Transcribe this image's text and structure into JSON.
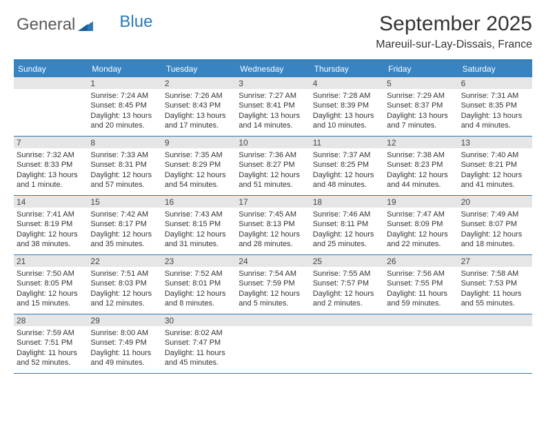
{
  "brand": {
    "part1": "General",
    "part2": "Blue"
  },
  "title": "September 2025",
  "location": "Mareuil-sur-Lay-Dissais, France",
  "colors": {
    "header_bg": "#3983c1",
    "border": "#2a79b8",
    "daynum_bg": "#e6e6e6"
  },
  "day_headers": [
    "Sunday",
    "Monday",
    "Tuesday",
    "Wednesday",
    "Thursday",
    "Friday",
    "Saturday"
  ],
  "weeks": [
    [
      {
        "blank": true
      },
      {
        "n": "1",
        "sunrise": "Sunrise: 7:24 AM",
        "sunset": "Sunset: 8:45 PM",
        "d1": "Daylight: 13 hours",
        "d2": "and 20 minutes."
      },
      {
        "n": "2",
        "sunrise": "Sunrise: 7:26 AM",
        "sunset": "Sunset: 8:43 PM",
        "d1": "Daylight: 13 hours",
        "d2": "and 17 minutes."
      },
      {
        "n": "3",
        "sunrise": "Sunrise: 7:27 AM",
        "sunset": "Sunset: 8:41 PM",
        "d1": "Daylight: 13 hours",
        "d2": "and 14 minutes."
      },
      {
        "n": "4",
        "sunrise": "Sunrise: 7:28 AM",
        "sunset": "Sunset: 8:39 PM",
        "d1": "Daylight: 13 hours",
        "d2": "and 10 minutes."
      },
      {
        "n": "5",
        "sunrise": "Sunrise: 7:29 AM",
        "sunset": "Sunset: 8:37 PM",
        "d1": "Daylight: 13 hours",
        "d2": "and 7 minutes."
      },
      {
        "n": "6",
        "sunrise": "Sunrise: 7:31 AM",
        "sunset": "Sunset: 8:35 PM",
        "d1": "Daylight: 13 hours",
        "d2": "and 4 minutes."
      }
    ],
    [
      {
        "n": "7",
        "sunrise": "Sunrise: 7:32 AM",
        "sunset": "Sunset: 8:33 PM",
        "d1": "Daylight: 13 hours",
        "d2": "and 1 minute."
      },
      {
        "n": "8",
        "sunrise": "Sunrise: 7:33 AM",
        "sunset": "Sunset: 8:31 PM",
        "d1": "Daylight: 12 hours",
        "d2": "and 57 minutes."
      },
      {
        "n": "9",
        "sunrise": "Sunrise: 7:35 AM",
        "sunset": "Sunset: 8:29 PM",
        "d1": "Daylight: 12 hours",
        "d2": "and 54 minutes."
      },
      {
        "n": "10",
        "sunrise": "Sunrise: 7:36 AM",
        "sunset": "Sunset: 8:27 PM",
        "d1": "Daylight: 12 hours",
        "d2": "and 51 minutes."
      },
      {
        "n": "11",
        "sunrise": "Sunrise: 7:37 AM",
        "sunset": "Sunset: 8:25 PM",
        "d1": "Daylight: 12 hours",
        "d2": "and 48 minutes."
      },
      {
        "n": "12",
        "sunrise": "Sunrise: 7:38 AM",
        "sunset": "Sunset: 8:23 PM",
        "d1": "Daylight: 12 hours",
        "d2": "and 44 minutes."
      },
      {
        "n": "13",
        "sunrise": "Sunrise: 7:40 AM",
        "sunset": "Sunset: 8:21 PM",
        "d1": "Daylight: 12 hours",
        "d2": "and 41 minutes."
      }
    ],
    [
      {
        "n": "14",
        "sunrise": "Sunrise: 7:41 AM",
        "sunset": "Sunset: 8:19 PM",
        "d1": "Daylight: 12 hours",
        "d2": "and 38 minutes."
      },
      {
        "n": "15",
        "sunrise": "Sunrise: 7:42 AM",
        "sunset": "Sunset: 8:17 PM",
        "d1": "Daylight: 12 hours",
        "d2": "and 35 minutes."
      },
      {
        "n": "16",
        "sunrise": "Sunrise: 7:43 AM",
        "sunset": "Sunset: 8:15 PM",
        "d1": "Daylight: 12 hours",
        "d2": "and 31 minutes."
      },
      {
        "n": "17",
        "sunrise": "Sunrise: 7:45 AM",
        "sunset": "Sunset: 8:13 PM",
        "d1": "Daylight: 12 hours",
        "d2": "and 28 minutes."
      },
      {
        "n": "18",
        "sunrise": "Sunrise: 7:46 AM",
        "sunset": "Sunset: 8:11 PM",
        "d1": "Daylight: 12 hours",
        "d2": "and 25 minutes."
      },
      {
        "n": "19",
        "sunrise": "Sunrise: 7:47 AM",
        "sunset": "Sunset: 8:09 PM",
        "d1": "Daylight: 12 hours",
        "d2": "and 22 minutes."
      },
      {
        "n": "20",
        "sunrise": "Sunrise: 7:49 AM",
        "sunset": "Sunset: 8:07 PM",
        "d1": "Daylight: 12 hours",
        "d2": "and 18 minutes."
      }
    ],
    [
      {
        "n": "21",
        "sunrise": "Sunrise: 7:50 AM",
        "sunset": "Sunset: 8:05 PM",
        "d1": "Daylight: 12 hours",
        "d2": "and 15 minutes."
      },
      {
        "n": "22",
        "sunrise": "Sunrise: 7:51 AM",
        "sunset": "Sunset: 8:03 PM",
        "d1": "Daylight: 12 hours",
        "d2": "and 12 minutes."
      },
      {
        "n": "23",
        "sunrise": "Sunrise: 7:52 AM",
        "sunset": "Sunset: 8:01 PM",
        "d1": "Daylight: 12 hours",
        "d2": "and 8 minutes."
      },
      {
        "n": "24",
        "sunrise": "Sunrise: 7:54 AM",
        "sunset": "Sunset: 7:59 PM",
        "d1": "Daylight: 12 hours",
        "d2": "and 5 minutes."
      },
      {
        "n": "25",
        "sunrise": "Sunrise: 7:55 AM",
        "sunset": "Sunset: 7:57 PM",
        "d1": "Daylight: 12 hours",
        "d2": "and 2 minutes."
      },
      {
        "n": "26",
        "sunrise": "Sunrise: 7:56 AM",
        "sunset": "Sunset: 7:55 PM",
        "d1": "Daylight: 11 hours",
        "d2": "and 59 minutes."
      },
      {
        "n": "27",
        "sunrise": "Sunrise: 7:58 AM",
        "sunset": "Sunset: 7:53 PM",
        "d1": "Daylight: 11 hours",
        "d2": "and 55 minutes."
      }
    ],
    [
      {
        "n": "28",
        "sunrise": "Sunrise: 7:59 AM",
        "sunset": "Sunset: 7:51 PM",
        "d1": "Daylight: 11 hours",
        "d2": "and 52 minutes."
      },
      {
        "n": "29",
        "sunrise": "Sunrise: 8:00 AM",
        "sunset": "Sunset: 7:49 PM",
        "d1": "Daylight: 11 hours",
        "d2": "and 49 minutes."
      },
      {
        "n": "30",
        "sunrise": "Sunrise: 8:02 AM",
        "sunset": "Sunset: 7:47 PM",
        "d1": "Daylight: 11 hours",
        "d2": "and 45 minutes."
      },
      {
        "blank": true
      },
      {
        "blank": true
      },
      {
        "blank": true
      },
      {
        "blank": true
      }
    ]
  ]
}
